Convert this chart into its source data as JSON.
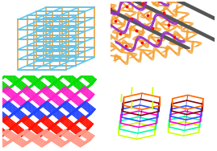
{
  "bg_color": "#ffffff",
  "tl_blue": "#5bc8f5",
  "tl_orange": "#f5a030",
  "tr_orange": "#f5a030",
  "tr_dark": "#555555",
  "tr_purple": "#9933cc",
  "tr_pink": "#ff2288",
  "tr_red": "#ee1111",
  "bl_green": "#00dd00",
  "bl_pink": "#ff22cc",
  "bl_blue": "#2244ff",
  "bl_red": "#ff1100",
  "bl_salmon": "#ff9988",
  "br_colors": [
    "#ccff00",
    "#00ffaa",
    "#ff00cc",
    "#2255ff",
    "#880000",
    "#ff6600",
    "#00ccff",
    "#ff44ff"
  ],
  "lw": 1.2
}
